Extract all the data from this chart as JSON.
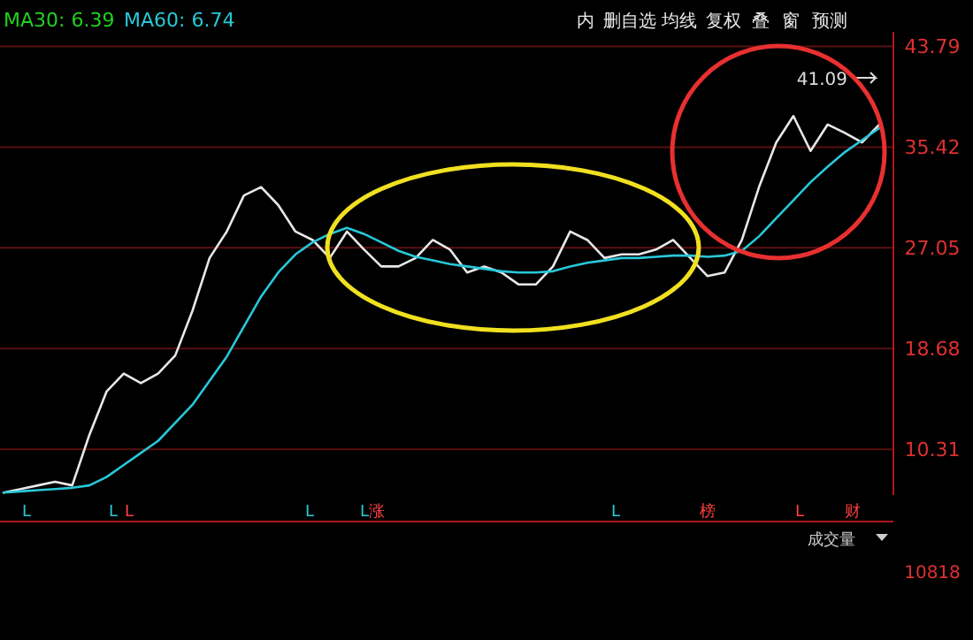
{
  "chart_data": {
    "type": "line",
    "categories": [
      null,
      null,
      null,
      null,
      null,
      null,
      null,
      null,
      null,
      null,
      null,
      null,
      null,
      null,
      null,
      null,
      null,
      null,
      null,
      null,
      null,
      null,
      null,
      null,
      null,
      null,
      null,
      null,
      null,
      null,
      null,
      null,
      null,
      null,
      null,
      null,
      null,
      null,
      null,
      null,
      null,
      null,
      null,
      null,
      null,
      null,
      null,
      null,
      null,
      null,
      null,
      null
    ],
    "series": [
      {
        "color": "#e8e8e8",
        "values": [
          6.7,
          7.0,
          7.3,
          7.6,
          7.3,
          11.5,
          15.1,
          16.6,
          15.8,
          16.6,
          18.1,
          21.8,
          26.2,
          28.4,
          31.4,
          32.1,
          30.6,
          28.4,
          27.7,
          26.2,
          28.4,
          26.9,
          25.5,
          25.5,
          26.2,
          27.7,
          26.9,
          25.0,
          25.5,
          25.0,
          24.0,
          24.0,
          25.5,
          28.4,
          27.7,
          26.2,
          26.5,
          26.5,
          26.9,
          27.7,
          26.2,
          24.7,
          25.0,
          27.7,
          32.1,
          35.8,
          38.0,
          35.1,
          37.3,
          36.6,
          35.8,
          37.3
        ]
      },
      {
        "color": "#28c8d8",
        "values": [
          6.7,
          6.8,
          6.9,
          7.0,
          7.1,
          7.3,
          8.0,
          9.0,
          10.0,
          11.0,
          12.5,
          14.0,
          16.0,
          18.0,
          20.5,
          23.0,
          25.0,
          26.5,
          27.5,
          28.2,
          28.7,
          28.2,
          27.5,
          26.8,
          26.3,
          26.0,
          25.7,
          25.5,
          25.3,
          25.1,
          25.0,
          25.0,
          25.1,
          25.5,
          25.8,
          26.0,
          26.2,
          26.2,
          26.3,
          26.4,
          26.4,
          26.3,
          26.4,
          26.8,
          28.0,
          29.5,
          31.0,
          32.5,
          33.8,
          35.0,
          36.0,
          37.0
        ]
      }
    ],
    "ylim": [
      6.5,
      45
    ],
    "yticks": [
      10.31,
      18.68,
      27.05,
      35.42,
      43.79
    ],
    "grid": "y",
    "annotations": [
      "MA30: 6.39",
      "MA60: 6.74",
      "41.09",
      "内",
      "删自选",
      "均线",
      "复权",
      "叠",
      "窗",
      "预测",
      "L",
      "L",
      "L",
      "L",
      "L",
      "涨",
      "L",
      "榜",
      "L",
      "财",
      "成交量",
      "10818"
    ]
  }
}
